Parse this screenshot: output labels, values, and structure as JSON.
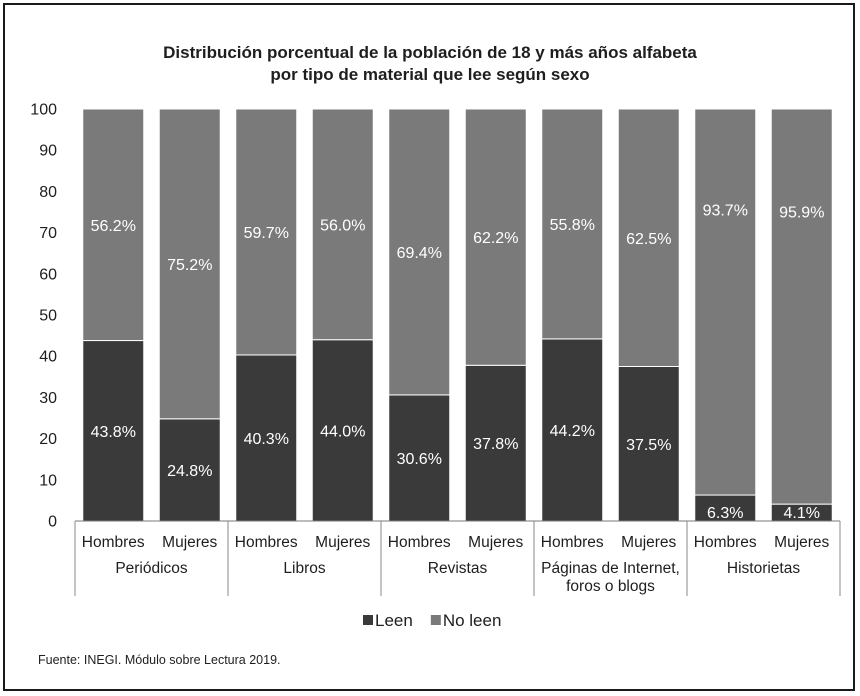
{
  "chart_data": {
    "type": "bar",
    "stacked": true,
    "title_lines": [
      "Distribución porcentual de la población de 18 y más años alfabeta",
      "por tipo de material que lee según sexo"
    ],
    "groups": [
      {
        "label_lines": [
          "Periódicos"
        ],
        "categories": [
          "Hombres",
          "Mujeres"
        ]
      },
      {
        "label_lines": [
          "Libros"
        ],
        "categories": [
          "Hombres",
          "Mujeres"
        ]
      },
      {
        "label_lines": [
          "Revistas"
        ],
        "categories": [
          "Hombres",
          "Mujeres"
        ]
      },
      {
        "label_lines": [
          "Páginas de Internet,",
          "foros o blogs"
        ],
        "categories": [
          "Hombres",
          "Mujeres"
        ]
      },
      {
        "label_lines": [
          "Historietas"
        ],
        "categories": [
          "Hombres",
          "Mujeres"
        ]
      }
    ],
    "series": [
      {
        "name": "Leen",
        "color": "#3a3a3a",
        "values": [
          43.8,
          24.8,
          40.3,
          44.0,
          30.6,
          37.8,
          44.2,
          37.5,
          6.3,
          4.1
        ],
        "labels": [
          "43.8%",
          "24.8%",
          "40.3%",
          "44.0%",
          "30.6%",
          "37.8%",
          "44.2%",
          "37.5%",
          "6.3%",
          "4.1%"
        ]
      },
      {
        "name": "No leen",
        "color": "#7a7a7a",
        "values": [
          56.2,
          75.2,
          59.7,
          56.0,
          69.4,
          62.2,
          55.8,
          62.5,
          93.7,
          95.9
        ],
        "labels": [
          "56.2%",
          "75.2%",
          "59.7%",
          "56.0%",
          "69.4%",
          "62.2%",
          "55.8%",
          "62.5%",
          "93.7%",
          "95.9%"
        ]
      }
    ],
    "ylim": [
      0,
      100
    ],
    "yticks": [
      0,
      10,
      20,
      30,
      40,
      50,
      60,
      70,
      80,
      90,
      100
    ],
    "legend": "bottom-center",
    "grid": false
  },
  "source": "Fuente: INEGI. Módulo sobre Lectura 2019."
}
